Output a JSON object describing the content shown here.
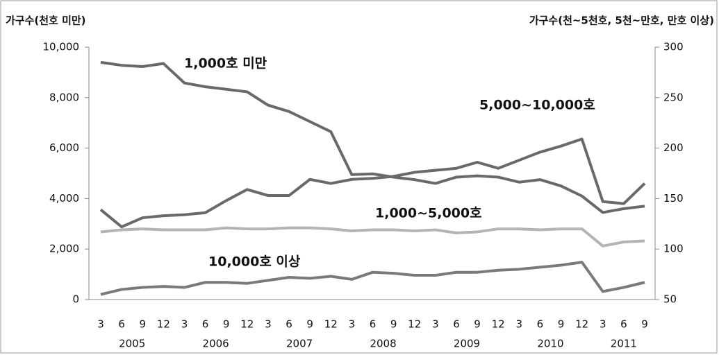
{
  "chart_data": {
    "type": "line",
    "y_label": "가구수(천호 미만)",
    "y2_label": "가구수(천~5천호, 5천~만호, 만호 이상)",
    "categories": [
      "3",
      "6",
      "9",
      "12",
      "3",
      "6",
      "9",
      "12",
      "3",
      "6",
      "9",
      "12",
      "3",
      "6",
      "9",
      "12",
      "3",
      "6",
      "9",
      "12",
      "3",
      "6",
      "9",
      "12",
      "3",
      "6",
      "9"
    ],
    "years": [
      "2005",
      "2006",
      "2007",
      "2008",
      "2009",
      "2010",
      "2011"
    ],
    "ylim": [
      0,
      10000
    ],
    "yticks": [
      0,
      {
        "value": 2000,
        "label": "2,000"
      },
      {
        "value": 4000,
        "label": "4,000"
      },
      {
        "value": 6000,
        "label": "6,000"
      },
      {
        "value": 8000,
        "label": "8,000"
      },
      {
        "value": 10000,
        "label": "10,000"
      }
    ],
    "y2lim": [
      50,
      300
    ],
    "y2ticks": [
      50,
      100,
      150,
      200,
      250,
      300
    ],
    "series": [
      {
        "name": "1,000호 미만",
        "color": "#696969",
        "values": [
          9400,
          9280,
          9230,
          9350,
          8580,
          8430,
          8330,
          8230,
          7700,
          7450,
          7050,
          6650,
          4950,
          4980,
          4850,
          4750,
          4600,
          4850,
          4900,
          4850,
          4650,
          4750,
          4500,
          4100,
          3450,
          3600,
          3700
        ]
      },
      {
        "name": "5,000~10,000호",
        "color": "#696969",
        "axis": "y2",
        "values": [
          139,
          122,
          131,
          133,
          134,
          136,
          148,
          159,
          153,
          153,
          169,
          165,
          169,
          170,
          172,
          176,
          178,
          180,
          186,
          180,
          188,
          196,
          202,
          209,
          147,
          145,
          165
        ]
      },
      {
        "name": "1,000~5,000호",
        "color": "#b4b4b4",
        "axis": "y2",
        "values": [
          117,
          119,
          120,
          119,
          119,
          119,
          121,
          120,
          120,
          121,
          121,
          120,
          118,
          119,
          119,
          118,
          119,
          116,
          117,
          120,
          120,
          119,
          120,
          120,
          103,
          107,
          108
        ]
      },
      {
        "name": "10,000호 이상",
        "color": "#7a7a7a",
        "axis": "y2",
        "values": [
          55,
          60,
          62,
          63,
          62,
          67,
          67,
          66,
          69,
          72,
          71,
          73,
          70,
          77,
          76,
          74,
          74,
          77,
          77,
          79,
          80,
          82,
          84,
          87,
          58,
          62,
          67
        ]
      }
    ]
  }
}
